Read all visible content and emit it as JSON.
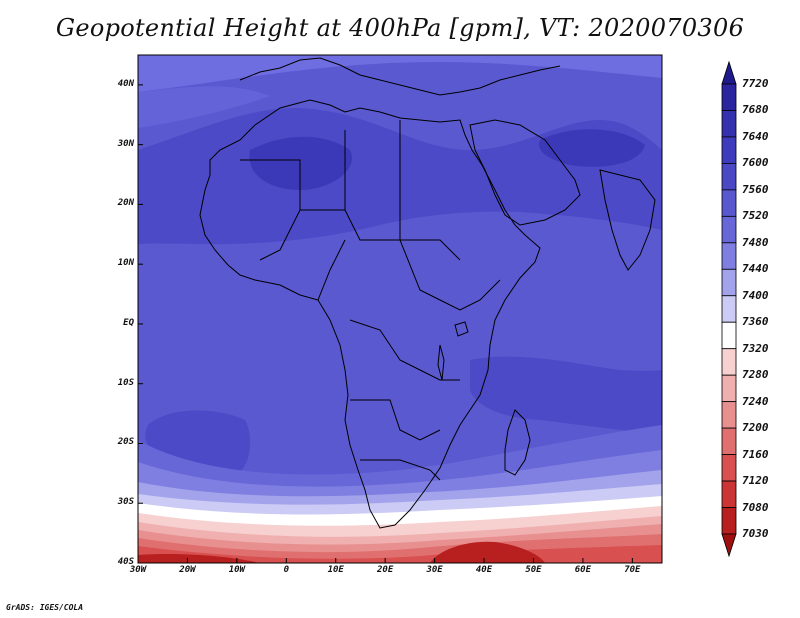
{
  "title": "Geopotential Height at 400hPa [gpm], VT: 2020070306",
  "map": {
    "lat_labels": [
      "40N",
      "30N",
      "20N",
      "10N",
      "EQ",
      "10S",
      "20S",
      "30S",
      "40S"
    ],
    "lon_labels": [
      "30W",
      "20W",
      "10W",
      "0",
      "10E",
      "20E",
      "30E",
      "40E",
      "50E",
      "60E",
      "70E"
    ],
    "lat_range": [
      -40,
      45
    ],
    "lon_range": [
      -30,
      76
    ]
  },
  "colorbar": {
    "levels": [
      "7720",
      "7680",
      "7640",
      "7600",
      "7560",
      "7520",
      "7480",
      "7440",
      "7400",
      "7360",
      "7320",
      "7280",
      "7240",
      "7200",
      "7160",
      "7120",
      "7080",
      "7030"
    ],
    "colors": [
      "#1e1a8c",
      "#2a249e",
      "#3530ae",
      "#3f3bbd",
      "#4b48c6",
      "#5958cf",
      "#6867d8",
      "#7f7fe1",
      "#a3a3ec",
      "#cbcbf5",
      "#ffffff",
      "#f7d0d0",
      "#f0b0b0",
      "#e89090",
      "#e07070",
      "#d85050",
      "#cc3535",
      "#b82020",
      "#9e1010"
    ]
  },
  "credit": "GrADS: IGES/COLA"
}
